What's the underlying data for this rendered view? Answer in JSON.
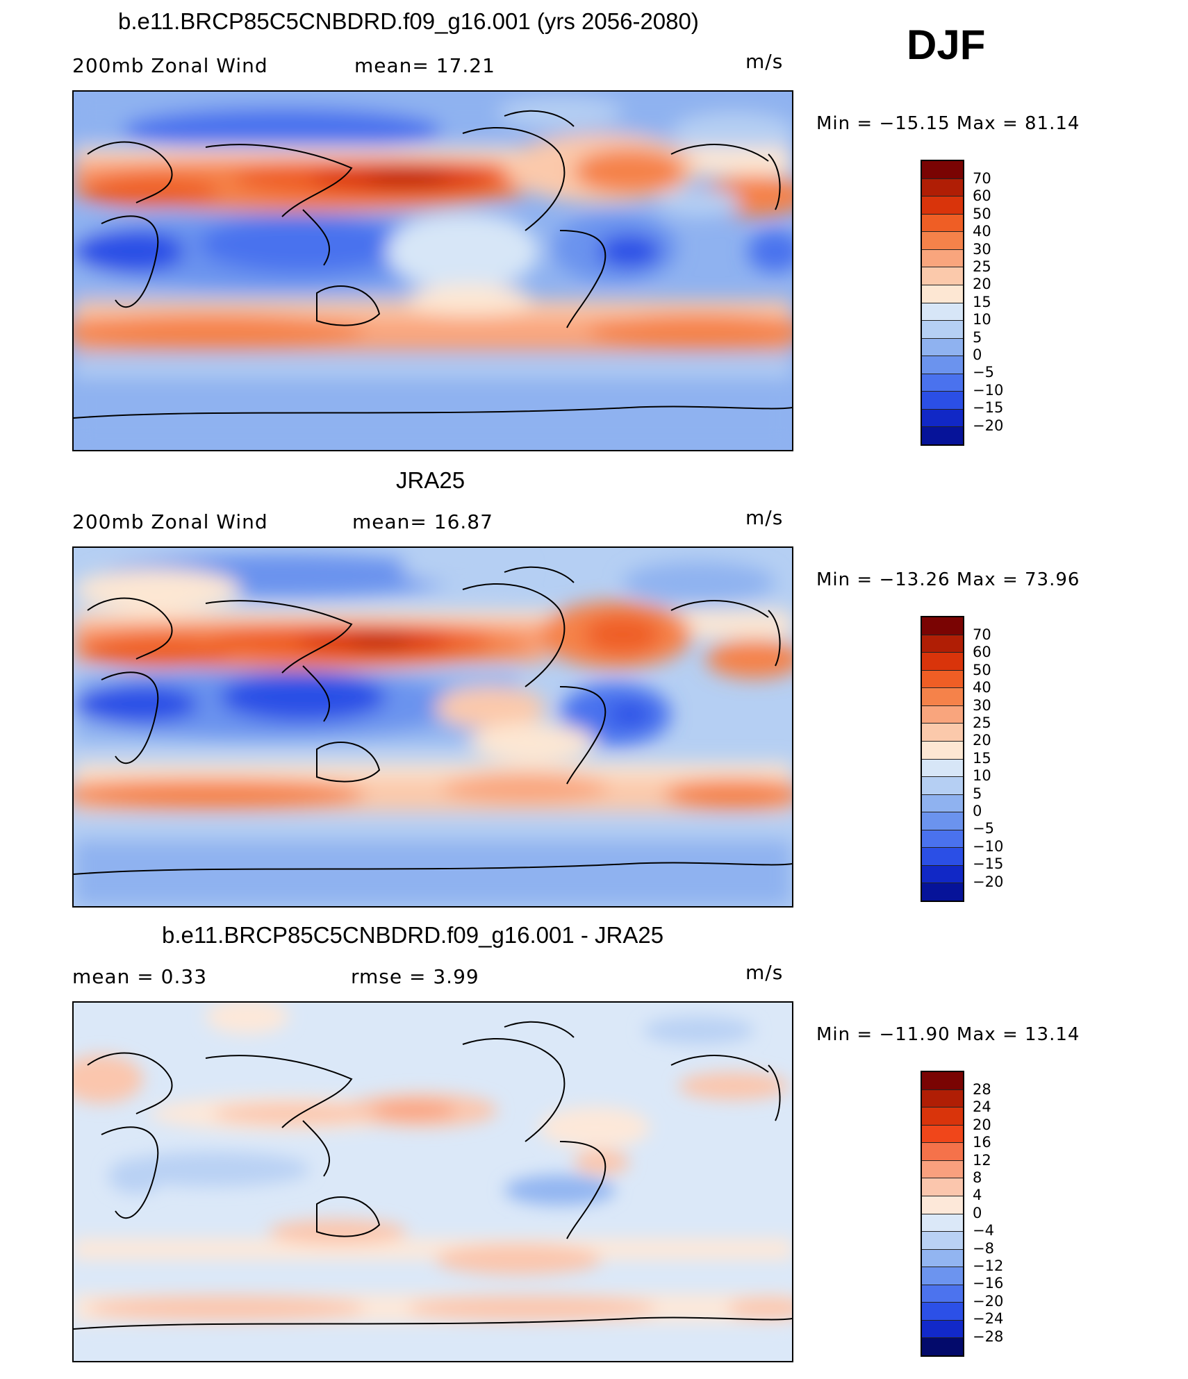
{
  "season": "DJF",
  "panels": [
    {
      "title": "b.e11.BRCP85C5CNBDRD.f09_g16.001 (yrs 2056-2080)",
      "left_label": "200mb  Zonal  Wind",
      "center_label": "mean=   17.21",
      "units": "m/s",
      "minmax": "Min  =  −15.15  Max  =    81.14",
      "colorbar_labels": [
        "70",
        "60",
        "50",
        "40",
        "30",
        "25",
        "20",
        "15",
        "10",
        "5",
        "0",
        "−5",
        "−10",
        "−15",
        "−20"
      ]
    },
    {
      "title": "JRA25",
      "left_label": "200mb  Zonal  Wind",
      "center_label": "mean=   16.87",
      "units": "m/s",
      "minmax": "Min  =  −13.26  Max  =    73.96",
      "colorbar_labels": [
        "70",
        "60",
        "50",
        "40",
        "30",
        "25",
        "20",
        "15",
        "10",
        "5",
        "0",
        "−5",
        "−10",
        "−15",
        "−20"
      ]
    },
    {
      "title": "b.e11.BRCP85C5CNBDRD.f09_g16.001 - JRA25",
      "left_label": "mean  =     0.33",
      "center_label": "rmse  =     3.99",
      "units": "m/s",
      "minmax": "Min  =  −11.90  Max  =    13.14",
      "colorbar_labels": [
        "28",
        "24",
        "20",
        "16",
        "12",
        "8",
        "4",
        "0",
        "−4",
        "−8",
        "−12",
        "−16",
        "−20",
        "−24",
        "−28"
      ]
    }
  ],
  "colors": {
    "full": [
      "#7a0403",
      "#b01e05",
      "#d9340b",
      "#ef5e25",
      "#f5824a",
      "#f9a57d",
      "#fbc9ab",
      "#fde7d3",
      "#d7e6f7",
      "#b5cff3",
      "#8fb2f0",
      "#6b93ee",
      "#4a72ee",
      "#2b4fe6",
      "#1128c6",
      "#061399"
    ],
    "diff": [
      "#7a0403",
      "#b01e05",
      "#d9340b",
      "#f0461a",
      "#f5724a",
      "#f9a07e",
      "#fbc6ad",
      "#fde8d9",
      "#dbe8f8",
      "#b9d1f4",
      "#92b5f1",
      "#6c94ef",
      "#4c73ee",
      "#2c50e7",
      "#1229c9",
      "#081790",
      "#030a6b"
    ]
  }
}
